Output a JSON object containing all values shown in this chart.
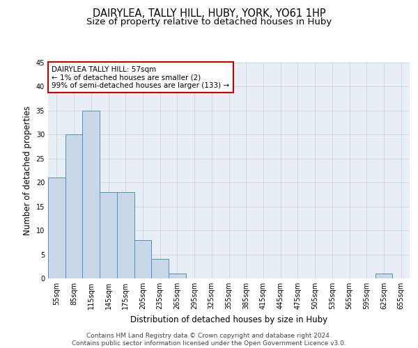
{
  "title_line1": "DAIRYLEA, TALLY HILL, HUBY, YORK, YO61 1HP",
  "title_line2": "Size of property relative to detached houses in Huby",
  "xlabel": "Distribution of detached houses by size in Huby",
  "ylabel": "Number of detached properties",
  "footer_line1": "Contains HM Land Registry data © Crown copyright and database right 2024.",
  "footer_line2": "Contains public sector information licensed under the Open Government Licence v3.0.",
  "categories": [
    "55sqm",
    "85sqm",
    "115sqm",
    "145sqm",
    "175sqm",
    "205sqm",
    "235sqm",
    "265sqm",
    "295sqm",
    "325sqm",
    "355sqm",
    "385sqm",
    "415sqm",
    "445sqm",
    "475sqm",
    "505sqm",
    "535sqm",
    "565sqm",
    "595sqm",
    "625sqm",
    "655sqm"
  ],
  "values": [
    21,
    30,
    35,
    18,
    18,
    8,
    4,
    1,
    0,
    0,
    0,
    0,
    0,
    0,
    0,
    0,
    0,
    0,
    0,
    1,
    0
  ],
  "bar_color": "#c8d8e8",
  "bar_edge_color": "#5b8db8",
  "annotation_text": "DAIRYLEA TALLY HILL: 57sqm\n← 1% of detached houses are smaller (2)\n99% of semi-detached houses are larger (133) →",
  "annotation_box_color": "white",
  "annotation_box_edge_color": "#cc0000",
  "ylim": [
    0,
    45
  ],
  "yticks": [
    0,
    5,
    10,
    15,
    20,
    25,
    30,
    35,
    40,
    45
  ],
  "grid_color": "#cccccc",
  "bg_color": "#e8eef6",
  "title_fontsize": 10.5,
  "subtitle_fontsize": 9.5,
  "axis_label_fontsize": 8.5,
  "tick_fontsize": 7,
  "footer_fontsize": 6.5,
  "annotation_fontsize": 7.5
}
